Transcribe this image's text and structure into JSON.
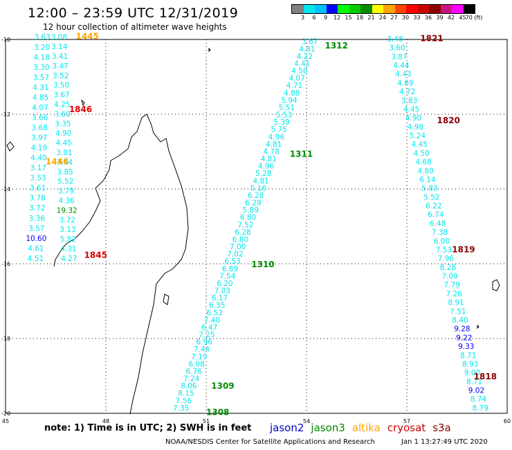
{
  "header": {
    "title": "12:00 – 23:59 UTC 12/31/2019",
    "subtitle": "12 hour collection of altimeter wave heights"
  },
  "color_legend": {
    "labels": [
      "3",
      "6",
      "9",
      "12",
      "15",
      "18",
      "21",
      "24",
      "27",
      "30",
      "33",
      "36",
      "39",
      "42",
      "45",
      "70 (ft)"
    ],
    "colors": [
      "#808080",
      "#00e5ee",
      "#00bfff",
      "#0000ff",
      "#00ff00",
      "#00cd00",
      "#008b00",
      "#ffff00",
      "#ffa500",
      "#ff4500",
      "#ff0000",
      "#cd0000",
      "#8b0000",
      "#c71585",
      "#ff00ff",
      "#000000"
    ]
  },
  "axes": {
    "lon_labels": [
      "45",
      "48",
      "51",
      "54",
      "57",
      "60"
    ],
    "lat_labels": [
      "-10",
      "-12",
      "-14",
      "-16",
      "-18",
      "-20"
    ]
  },
  "pass_labels": [
    {
      "text": "1445",
      "color": "#ffa500",
      "lon": 47.1,
      "lat": -9.9
    },
    {
      "text": "1846",
      "color": "#e00000",
      "lon": 46.9,
      "lat": -11.85
    },
    {
      "text": "1446",
      "color": "#ffa500",
      "lon": 46.2,
      "lat": -13.25
    },
    {
      "text": "1845",
      "color": "#e00000",
      "lon": 47.35,
      "lat": -15.75
    },
    {
      "text": "1312",
      "color": "#008b00",
      "lon": 54.55,
      "lat": -10.15
    },
    {
      "text": "1311",
      "color": "#008b00",
      "lon": 53.5,
      "lat": -13.05
    },
    {
      "text": "1310",
      "color": "#008b00",
      "lon": 52.35,
      "lat": -16.0
    },
    {
      "text": "1309",
      "color": "#008b00",
      "lon": 51.15,
      "lat": -19.25
    },
    {
      "text": "1308",
      "color": "#008b00",
      "lon": 51.0,
      "lat": -19.95
    },
    {
      "text": "1821",
      "color": "#8b0000",
      "lon": 57.4,
      "lat": -9.95
    },
    {
      "text": "1820",
      "color": "#8b0000",
      "lon": 57.9,
      "lat": -12.15
    },
    {
      "text": "1819",
      "color": "#8b0000",
      "lon": 58.35,
      "lat": -15.6
    },
    {
      "text": "1818",
      "color": "#8b0000",
      "lon": 59.0,
      "lat": -19.0
    }
  ],
  "tracks": [
    {
      "name": "track-west-a",
      "lon0": 46.1,
      "lat0": -9.93,
      "lon1": 45.9,
      "lat1": -15.85,
      "values": [
        {
          "v": "3.63",
          "c": "#00e5ee"
        },
        {
          "v": "3.20",
          "c": "#00e5ee"
        },
        {
          "v": "4.18",
          "c": "#00e5ee"
        },
        {
          "v": "3.30",
          "c": "#00e5ee"
        },
        {
          "v": "3.57",
          "c": "#00e5ee"
        },
        {
          "v": "4.31",
          "c": "#00e5ee"
        },
        {
          "v": "4.85",
          "c": "#00e5ee"
        },
        {
          "v": "4.07",
          "c": "#00e5ee"
        },
        {
          "v": "3.66",
          "c": "#00e5ee"
        },
        {
          "v": "3.68",
          "c": "#00e5ee"
        },
        {
          "v": "3.97",
          "c": "#00e5ee"
        },
        {
          "v": "4.19",
          "c": "#00e5ee"
        },
        {
          "v": "4.40",
          "c": "#00e5ee"
        },
        {
          "v": "3.17",
          "c": "#00e5ee"
        },
        {
          "v": "3.53",
          "c": "#00e5ee"
        },
        {
          "v": "3.61",
          "c": "#00e5ee"
        },
        {
          "v": "3.78",
          "c": "#00e5ee"
        },
        {
          "v": "3.72",
          "c": "#00e5ee"
        },
        {
          "v": "3.36",
          "c": "#00e5ee"
        },
        {
          "v": "3.57",
          "c": "#00e5ee"
        },
        {
          "v": "10.60",
          "c": "#0000ff"
        },
        {
          "v": "4.61",
          "c": "#00e5ee"
        },
        {
          "v": "4.51",
          "c": "#00e5ee"
        }
      ]
    },
    {
      "name": "track-west-b",
      "lon0": 46.6,
      "lat0": -9.93,
      "lon1": 46.9,
      "lat1": -15.85,
      "values": [
        {
          "v": "3.08",
          "c": "#00e5ee"
        },
        {
          "v": "3.14",
          "c": "#00e5ee"
        },
        {
          "v": "3.41",
          "c": "#00e5ee"
        },
        {
          "v": "3.47",
          "c": "#00e5ee"
        },
        {
          "v": "3.52",
          "c": "#00e5ee"
        },
        {
          "v": "3.50",
          "c": "#00e5ee"
        },
        {
          "v": "3.67",
          "c": "#00e5ee"
        },
        {
          "v": "4.25",
          "c": "#00e5ee"
        },
        {
          "v": "3.60",
          "c": "#00e5ee"
        },
        {
          "v": "3.35",
          "c": "#00e5ee"
        },
        {
          "v": "4.90",
          "c": "#00e5ee"
        },
        {
          "v": "4.45",
          "c": "#00e5ee"
        },
        {
          "v": "3.81",
          "c": "#00e5ee"
        },
        {
          "v": "3.44",
          "c": "#00e5ee"
        },
        {
          "v": "3.85",
          "c": "#00e5ee"
        },
        {
          "v": "5.52",
          "c": "#00e5ee"
        },
        {
          "v": "3.79",
          "c": "#00e5ee"
        },
        {
          "v": "4.36",
          "c": "#00e5ee"
        },
        {
          "v": "19.32",
          "c": "#008b00"
        },
        {
          "v": "3.72",
          "c": "#00e5ee"
        },
        {
          "v": "3.13",
          "c": "#00e5ee"
        },
        {
          "v": "5.82",
          "c": "#00e5ee"
        },
        {
          "v": "4.31",
          "c": "#00e5ee"
        },
        {
          "v": "4.27",
          "c": "#00e5ee"
        }
      ]
    },
    {
      "name": "track-jason3-1312-1308",
      "lon0": 54.1,
      "lat0": -10.05,
      "lon1": 50.25,
      "lat1": -19.85,
      "values": [
        {
          "v": "3.67",
          "c": "#00e5ee"
        },
        {
          "v": "4.81",
          "c": "#00e5ee"
        },
        {
          "v": "4.22",
          "c": "#00e5ee"
        },
        {
          "v": "4.41",
          "c": "#00e5ee"
        },
        {
          "v": "4.50",
          "c": "#00e5ee"
        },
        {
          "v": "4.07",
          "c": "#00e5ee"
        },
        {
          "v": "4.71",
          "c": "#00e5ee"
        },
        {
          "v": "4.88",
          "c": "#00e5ee"
        },
        {
          "v": "5.94",
          "c": "#00e5ee"
        },
        {
          "v": "5.51",
          "c": "#00e5ee"
        },
        {
          "v": "5.53",
          "c": "#00e5ee"
        },
        {
          "v": "5.39",
          "c": "#00e5ee"
        },
        {
          "v": "5.75",
          "c": "#00e5ee"
        },
        {
          "v": "4.96",
          "c": "#00e5ee"
        },
        {
          "v": "4.81",
          "c": "#00e5ee"
        },
        {
          "v": "4.78",
          "c": "#00e5ee"
        },
        {
          "v": "4.81",
          "c": "#00e5ee"
        },
        {
          "v": "4.96",
          "c": "#00e5ee"
        },
        {
          "v": "5.28",
          "c": "#00e5ee"
        },
        {
          "v": "4.81",
          "c": "#00e5ee"
        },
        {
          "v": "5.16",
          "c": "#00e5ee"
        },
        {
          "v": "6.28",
          "c": "#00e5ee"
        },
        {
          "v": "6.29",
          "c": "#00e5ee"
        },
        {
          "v": "5.89",
          "c": "#00e5ee"
        },
        {
          "v": "6.80",
          "c": "#00e5ee"
        },
        {
          "v": "7.52",
          "c": "#00e5ee"
        },
        {
          "v": "6.28",
          "c": "#00e5ee"
        },
        {
          "v": "6.80",
          "c": "#00e5ee"
        },
        {
          "v": "7.00",
          "c": "#00e5ee"
        },
        {
          "v": "7.02",
          "c": "#00e5ee"
        },
        {
          "v": "6.53",
          "c": "#00e5ee"
        },
        {
          "v": "6.89",
          "c": "#00e5ee"
        },
        {
          "v": "7.54",
          "c": "#00e5ee"
        },
        {
          "v": "6.20",
          "c": "#00e5ee"
        },
        {
          "v": "7.03",
          "c": "#00e5ee"
        },
        {
          "v": "6.17",
          "c": "#00e5ee"
        },
        {
          "v": "6.35",
          "c": "#00e5ee"
        },
        {
          "v": "6.53",
          "c": "#00e5ee"
        },
        {
          "v": "7.40",
          "c": "#00e5ee"
        },
        {
          "v": "6.47",
          "c": "#00e5ee"
        },
        {
          "v": "7.25",
          "c": "#00e5ee"
        },
        {
          "v": "6.96",
          "c": "#00e5ee"
        },
        {
          "v": "7.44",
          "c": "#00e5ee"
        },
        {
          "v": "7.19",
          "c": "#00e5ee"
        },
        {
          "v": "6.98",
          "c": "#00e5ee"
        },
        {
          "v": "6.76",
          "c": "#00e5ee"
        },
        {
          "v": "7.24",
          "c": "#00e5ee"
        },
        {
          "v": "8.06",
          "c": "#00e5ee"
        },
        {
          "v": "8.15",
          "c": "#00e5ee"
        },
        {
          "v": "7.56",
          "c": "#00e5ee"
        },
        {
          "v": "7.35",
          "c": "#00e5ee"
        }
      ]
    },
    {
      "name": "track-cryosat-1821-1818",
      "lon0": 56.65,
      "lat0": -9.98,
      "lon1": 59.2,
      "lat1": -19.85,
      "values": [
        {
          "v": "3.48",
          "c": "#00e5ee"
        },
        {
          "v": "3.60",
          "c": "#00e5ee"
        },
        {
          "v": "3.87",
          "c": "#00e5ee"
        },
        {
          "v": "4.44",
          "c": "#00e5ee"
        },
        {
          "v": "4.43",
          "c": "#00e5ee"
        },
        {
          "v": "4.69",
          "c": "#00e5ee"
        },
        {
          "v": "4.72",
          "c": "#00e5ee"
        },
        {
          "v": "3.83",
          "c": "#00e5ee"
        },
        {
          "v": "4.45",
          "c": "#00e5ee"
        },
        {
          "v": "4.90",
          "c": "#00e5ee"
        },
        {
          "v": "4.98",
          "c": "#00e5ee"
        },
        {
          "v": "5.24",
          "c": "#00e5ee"
        },
        {
          "v": "4.45",
          "c": "#00e5ee"
        },
        {
          "v": "4.50",
          "c": "#00e5ee"
        },
        {
          "v": "4.68",
          "c": "#00e5ee"
        },
        {
          "v": "4.80",
          "c": "#00e5ee"
        },
        {
          "v": "6.14",
          "c": "#00e5ee"
        },
        {
          "v": "5.83",
          "c": "#00e5ee"
        },
        {
          "v": "5.52",
          "c": "#00e5ee"
        },
        {
          "v": "6.22",
          "c": "#00e5ee"
        },
        {
          "v": "6.74",
          "c": "#00e5ee"
        },
        {
          "v": "6.48",
          "c": "#00e5ee"
        },
        {
          "v": "7.38",
          "c": "#00e5ee"
        },
        {
          "v": "6.00",
          "c": "#00e5ee"
        },
        {
          "v": "7.53",
          "c": "#00e5ee"
        },
        {
          "v": "7.96",
          "c": "#00e5ee"
        },
        {
          "v": "8.28",
          "c": "#00e5ee"
        },
        {
          "v": "7.09",
          "c": "#00e5ee"
        },
        {
          "v": "7.79",
          "c": "#00e5ee"
        },
        {
          "v": "7.26",
          "c": "#00e5ee"
        },
        {
          "v": "8.91",
          "c": "#00e5ee"
        },
        {
          "v": "7.51",
          "c": "#00e5ee"
        },
        {
          "v": "8.40",
          "c": "#00e5ee"
        },
        {
          "v": "9.28",
          "c": "#0000ff"
        },
        {
          "v": "9.22",
          "c": "#0000ff"
        },
        {
          "v": "9.33",
          "c": "#0000ff"
        },
        {
          "v": "8.71",
          "c": "#00e5ee"
        },
        {
          "v": "8.93",
          "c": "#00e5ee"
        },
        {
          "v": "9.00",
          "c": "#00e5ee"
        },
        {
          "v": "8.71",
          "c": "#00e5ee"
        },
        {
          "v": "9.02",
          "c": "#0000ff"
        },
        {
          "v": "8.74",
          "c": "#00e5ee"
        },
        {
          "v": "8.79",
          "c": "#00e5ee"
        }
      ]
    }
  ],
  "footer": {
    "note": "note: 1) Time is in UTC; 2) SWH is in feet",
    "satellites": [
      {
        "name": "jason2",
        "color": "#0000cd"
      },
      {
        "name": "jason3",
        "color": "#008b00"
      },
      {
        "name": "altika",
        "color": "#ffa500"
      },
      {
        "name": "cryosat",
        "color": "#cd0000"
      },
      {
        "name": "s3a",
        "color": "#8b0000"
      }
    ],
    "credit": "NOAA/NESDIS Center for Satellite Applications and Research",
    "timestamp": "Jan  1 13:27:49 UTC 2020"
  }
}
